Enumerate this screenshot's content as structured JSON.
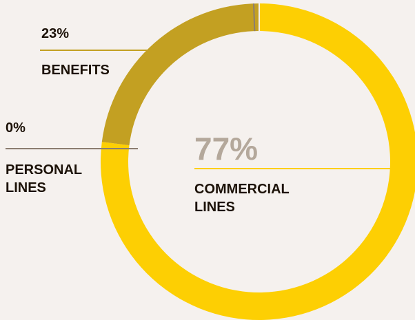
{
  "chart_data": {
    "type": "pie",
    "variant": "donut",
    "title": "",
    "categories": [
      "COMMERCIAL LINES",
      "BENEFITS",
      "PERSONAL LINES"
    ],
    "values": [
      77,
      23,
      0
    ],
    "value_labels": [
      "77%",
      "23%",
      "0%"
    ],
    "label_lines": [
      [
        "COMMERCIAL",
        "LINES"
      ],
      [
        "BENEFITS"
      ],
      [
        "PERSONAL",
        "LINES"
      ]
    ],
    "colors": [
      "#fdcf03",
      "#c3a022",
      "#8b7d70"
    ],
    "legend": "none"
  },
  "colors": {
    "background": "#f5f1ee",
    "label_text": "#1c1208",
    "big_percent": "#b4a89b",
    "separator": "#f5f1ee"
  }
}
